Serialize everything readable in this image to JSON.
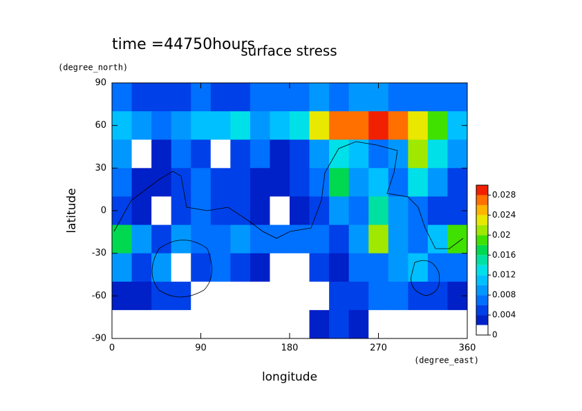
{
  "chart_data": {
    "type": "contour",
    "title": "surface stress",
    "subtitle": "time =44750hours",
    "x_label": "longitude",
    "x_unit": "(degree_east)",
    "y_label": "latitude",
    "y_unit": "(degree_north)",
    "xlim": [
      0,
      360
    ],
    "xticks": [
      0,
      90,
      180,
      270,
      360
    ],
    "ylim": [
      -90,
      90
    ],
    "yticks": [
      90,
      60,
      30,
      0,
      -30,
      -60,
      -90
    ],
    "x": [
      10,
      30,
      50,
      70,
      90,
      110,
      130,
      150,
      170,
      190,
      210,
      230,
      250,
      270,
      290,
      310,
      330,
      350
    ],
    "y": [
      80,
      60,
      40,
      20,
      0,
      -20,
      -40,
      -60,
      -80
    ],
    "z": [
      [
        0.006,
        0.005,
        0.004,
        0.005,
        0.006,
        0.005,
        0.005,
        0.006,
        0.006,
        0.007,
        0.008,
        0.007,
        0.008,
        0.008,
        0.007,
        0.006,
        0.006,
        0.006
      ],
      [
        0.01,
        0.008,
        0.006,
        0.008,
        0.01,
        0.01,
        0.012,
        0.008,
        0.01,
        0.012,
        0.022,
        0.026,
        0.026,
        0.028,
        0.026,
        0.022,
        0.018,
        0.01
      ],
      [
        0.008,
        0.001,
        0.003,
        0.006,
        0.004,
        0,
        0.004,
        0.006,
        0.003,
        0.004,
        0.008,
        0.012,
        0.01,
        0.006,
        0.008,
        0.02,
        0.012,
        0.008
      ],
      [
        0.006,
        0.003,
        0.002,
        0.005,
        0.006,
        0.004,
        0.005,
        0.003,
        0.002,
        0.004,
        0.006,
        0.016,
        0.008,
        0.01,
        0.007,
        0.012,
        0.008,
        0.005
      ],
      [
        0.004,
        0.003,
        0.001,
        0.004,
        0.006,
        0.005,
        0.004,
        0.003,
        0.001,
        0.002,
        0.004,
        0.008,
        0.006,
        0.014,
        0.008,
        0.006,
        0.004,
        0.004
      ],
      [
        0.016,
        0.008,
        0.004,
        0.008,
        0.006,
        0.006,
        0.008,
        0.006,
        0.007,
        0.006,
        0.006,
        0.005,
        0.008,
        0.02,
        0.008,
        0.006,
        0.01,
        0.018
      ],
      [
        0.008,
        0.004,
        0.008,
        0.001,
        0.004,
        0.006,
        0.004,
        0.003,
        0,
        0,
        0.004,
        0.003,
        0.006,
        0.006,
        0.008,
        0.01,
        0.006,
        0.006
      ],
      [
        0.002,
        0.002,
        0.004,
        0.004,
        0.001,
        0,
        0,
        0,
        0,
        0,
        0,
        0.004,
        0.004,
        0.006,
        0.006,
        0.004,
        0.004,
        0.002
      ],
      [
        0,
        0,
        0,
        0,
        0,
        0,
        0,
        0,
        0,
        0,
        0.003,
        0.004,
        0.003,
        0,
        0,
        0,
        0,
        0
      ]
    ],
    "levels": [
      0,
      0.002,
      0.004,
      0.006,
      0.008,
      0.01,
      0.012,
      0.014,
      0.016,
      0.018,
      0.02,
      0.022,
      0.024,
      0.026,
      0.028,
      0.03
    ],
    "colors": [
      "#ffffff",
      "#0020c8",
      "#0040e8",
      "#0070ff",
      "#0098ff",
      "#00c0ff",
      "#00e0e8",
      "#00e0a0",
      "#00d850",
      "#40e000",
      "#a0e800",
      "#e8e800",
      "#ffb400",
      "#ff7000",
      "#f02000"
    ],
    "colorbar_ticks": [
      0,
      0.004,
      0.008,
      0.012,
      0.016,
      0.02,
      0.024,
      0.028
    ]
  }
}
